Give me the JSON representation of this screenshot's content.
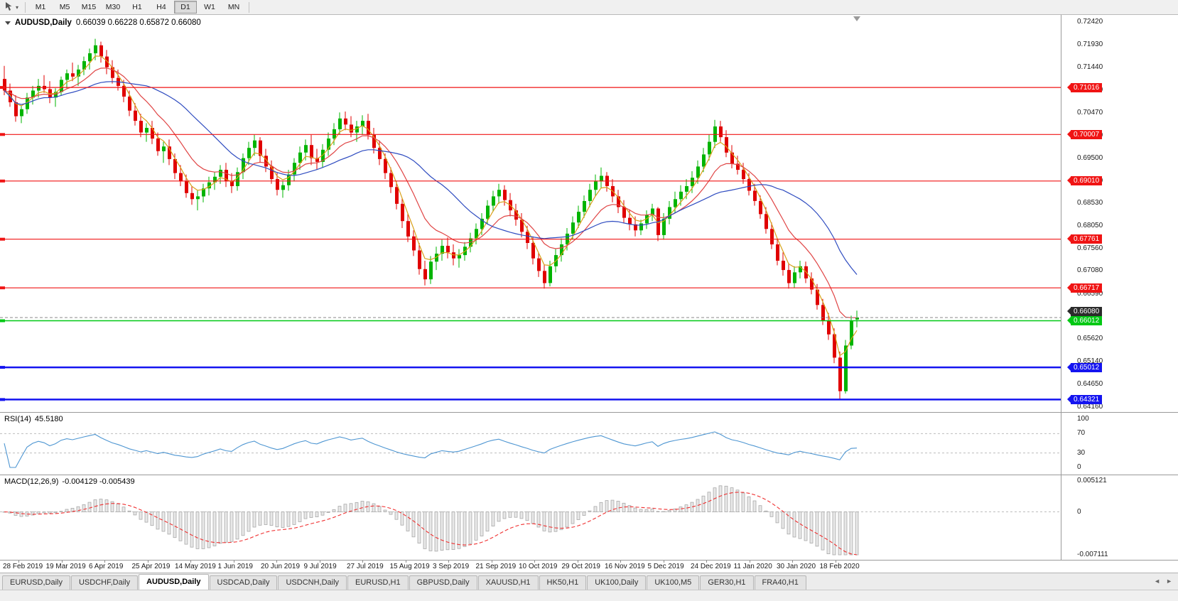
{
  "toolbar": {
    "caret_glyph": "▾",
    "timeframes": [
      {
        "label": "M1",
        "active": false
      },
      {
        "label": "M5",
        "active": false
      },
      {
        "label": "M15",
        "active": false
      },
      {
        "label": "M30",
        "active": false
      },
      {
        "label": "H1",
        "active": false
      },
      {
        "label": "H4",
        "active": false
      },
      {
        "label": "D1",
        "active": true
      },
      {
        "label": "W1",
        "active": false
      },
      {
        "label": "MN",
        "active": false
      }
    ]
  },
  "chart_data": {
    "type": "candlestick",
    "symbol_label": "AUDUSD,Daily",
    "ohlc_readout": "0.66039 0.66228 0.65872 0.66080",
    "price_max": 0.7242,
    "price_min": 0.6416,
    "candle_up_color": "#00b400",
    "candle_down_color": "#e00000",
    "price_ticks": [
      "0.72420",
      "0.71930",
      "0.71440",
      "0.70960",
      "0.70470",
      "0.69990",
      "0.69500",
      "0.69010",
      "0.68530",
      "0.68050",
      "0.67560",
      "0.67080",
      "0.66590",
      "0.66110",
      "0.65620",
      "0.65140",
      "0.64650",
      "0.64160"
    ],
    "dates": [
      "28 Feb 2019",
      "19 Mar 2019",
      "6 Apr 2019",
      "25 Apr 2019",
      "14 May 2019",
      "1 Jun 2019",
      "20 Jun 2019",
      "9 Jul 2019",
      "27 Jul 2019",
      "15 Aug 2019",
      "3 Sep 2019",
      "21 Sep 2019",
      "10 Oct 2019",
      "29 Oct 2019",
      "16 Nov 2019",
      "5 Dec 2019",
      "24 Dec 2019",
      "11 Jan 2020",
      "30 Jan 2020",
      "18 Feb 2020"
    ],
    "moving_averages": [
      {
        "name": "fast",
        "method": "ema",
        "period": 4,
        "color": "#d8a018"
      },
      {
        "name": "medium",
        "method": "ema",
        "period": 11,
        "color": "#e04545"
      },
      {
        "name": "slow",
        "method": "sma",
        "period": 22,
        "color": "#2f4cc0"
      }
    ],
    "horizontal_lines": [
      {
        "value": 0.71016,
        "label": "0.71016",
        "color": "#f01414",
        "width": 1.2
      },
      {
        "value": 0.70007,
        "label": "0.70007",
        "color": "#f01414",
        "width": 1.2
      },
      {
        "value": 0.6901,
        "label": "0.69010",
        "color": "#f01414",
        "width": 1.2
      },
      {
        "value": 0.67761,
        "label": "0.67761",
        "color": "#f01414",
        "width": 1.2
      },
      {
        "value": 0.66717,
        "label": "0.66717",
        "color": "#f01414",
        "width": 1.2
      },
      {
        "value": 0.66012,
        "label": "0.66012",
        "color": "#00c814",
        "width": 1.5
      },
      {
        "value": 0.65012,
        "label": "0.65012",
        "color": "#1414f0",
        "width": 2.5
      },
      {
        "value": 0.64321,
        "label": "0.64321",
        "color": "#1414f0",
        "width": 2.5
      }
    ],
    "bid_line": {
      "value": 0.6608,
      "label": "0.66080",
      "color": "#2b2b2b"
    },
    "candles": [
      [
        0.712,
        0.7148,
        0.7085,
        0.7095
      ],
      [
        0.7095,
        0.711,
        0.706,
        0.707
      ],
      [
        0.707,
        0.7085,
        0.7028,
        0.704
      ],
      [
        0.704,
        0.7062,
        0.7025,
        0.7055
      ],
      [
        0.7055,
        0.709,
        0.7045,
        0.708
      ],
      [
        0.708,
        0.7105,
        0.7065,
        0.7095
      ],
      [
        0.7095,
        0.712,
        0.708,
        0.7105
      ],
      [
        0.7105,
        0.7128,
        0.709,
        0.7098
      ],
      [
        0.7098,
        0.7115,
        0.7068,
        0.708
      ],
      [
        0.708,
        0.71,
        0.706,
        0.7092
      ],
      [
        0.7092,
        0.7125,
        0.7085,
        0.7118
      ],
      [
        0.7118,
        0.714,
        0.71,
        0.7132
      ],
      [
        0.7132,
        0.7155,
        0.7115,
        0.7125
      ],
      [
        0.7125,
        0.715,
        0.7105,
        0.714
      ],
      [
        0.714,
        0.7168,
        0.7128,
        0.7158
      ],
      [
        0.7158,
        0.7185,
        0.714,
        0.7175
      ],
      [
        0.7175,
        0.7206,
        0.716,
        0.7192
      ],
      [
        0.7192,
        0.72,
        0.7155,
        0.7168
      ],
      [
        0.7168,
        0.7182,
        0.713,
        0.7145
      ],
      [
        0.7145,
        0.716,
        0.711,
        0.7122
      ],
      [
        0.7122,
        0.714,
        0.7095,
        0.7105
      ],
      [
        0.7105,
        0.7118,
        0.707,
        0.7082
      ],
      [
        0.7082,
        0.7095,
        0.704,
        0.7052
      ],
      [
        0.7052,
        0.7068,
        0.702,
        0.703
      ],
      [
        0.703,
        0.7045,
        0.6995,
        0.7005
      ],
      [
        0.7005,
        0.7025,
        0.6985,
        0.7015
      ],
      [
        0.7015,
        0.703,
        0.698,
        0.6992
      ],
      [
        0.6992,
        0.7005,
        0.6955,
        0.6965
      ],
      [
        0.6965,
        0.6985,
        0.694,
        0.6975
      ],
      [
        0.6975,
        0.699,
        0.6935,
        0.6948
      ],
      [
        0.6948,
        0.696,
        0.6905,
        0.6918
      ],
      [
        0.6918,
        0.6935,
        0.689,
        0.69
      ],
      [
        0.69,
        0.6915,
        0.6865,
        0.6875
      ],
      [
        0.6875,
        0.689,
        0.685,
        0.6862
      ],
      [
        0.6862,
        0.688,
        0.6838,
        0.6868
      ],
      [
        0.6868,
        0.6895,
        0.6855,
        0.6885
      ],
      [
        0.6885,
        0.691,
        0.687,
        0.6898
      ],
      [
        0.6898,
        0.692,
        0.6882,
        0.691
      ],
      [
        0.691,
        0.6935,
        0.6895,
        0.6925
      ],
      [
        0.6925,
        0.694,
        0.6888,
        0.69
      ],
      [
        0.69,
        0.6918,
        0.6875,
        0.689
      ],
      [
        0.689,
        0.693,
        0.688,
        0.692
      ],
      [
        0.692,
        0.696,
        0.6905,
        0.695
      ],
      [
        0.695,
        0.6985,
        0.6935,
        0.6972
      ],
      [
        0.6972,
        0.7,
        0.6955,
        0.6988
      ],
      [
        0.6988,
        0.6995,
        0.694,
        0.6955
      ],
      [
        0.6955,
        0.697,
        0.692,
        0.6932
      ],
      [
        0.6932,
        0.6945,
        0.6895,
        0.6905
      ],
      [
        0.6905,
        0.692,
        0.687,
        0.6882
      ],
      [
        0.6882,
        0.69,
        0.6865,
        0.6892
      ],
      [
        0.6892,
        0.6925,
        0.688,
        0.6915
      ],
      [
        0.6915,
        0.695,
        0.69,
        0.694
      ],
      [
        0.694,
        0.6975,
        0.6925,
        0.6962
      ],
      [
        0.6962,
        0.699,
        0.6945,
        0.6978
      ],
      [
        0.6978,
        0.7,
        0.6935,
        0.695
      ],
      [
        0.695,
        0.697,
        0.6925,
        0.6942
      ],
      [
        0.6942,
        0.698,
        0.693,
        0.6968
      ],
      [
        0.6968,
        0.7005,
        0.6955,
        0.6992
      ],
      [
        0.6992,
        0.7025,
        0.6978,
        0.7012
      ],
      [
        0.7012,
        0.7048,
        0.7,
        0.7035
      ],
      [
        0.7035,
        0.705,
        0.701,
        0.7022
      ],
      [
        0.7022,
        0.704,
        0.6995,
        0.7005
      ],
      [
        0.7005,
        0.703,
        0.6985,
        0.7018
      ],
      [
        0.7018,
        0.7042,
        0.7,
        0.703
      ],
      [
        0.703,
        0.7045,
        0.699,
        0.7
      ],
      [
        0.7,
        0.7015,
        0.696,
        0.6972
      ],
      [
        0.6972,
        0.6988,
        0.6935,
        0.6948
      ],
      [
        0.6948,
        0.696,
        0.6905,
        0.6918
      ],
      [
        0.6918,
        0.693,
        0.6875,
        0.6888
      ],
      [
        0.6888,
        0.69,
        0.684,
        0.6852
      ],
      [
        0.6852,
        0.6865,
        0.68,
        0.6815
      ],
      [
        0.6815,
        0.683,
        0.677,
        0.6782
      ],
      [
        0.6782,
        0.6795,
        0.674,
        0.6752
      ],
      [
        0.6752,
        0.6768,
        0.67,
        0.6712
      ],
      [
        0.6712,
        0.673,
        0.6677,
        0.669
      ],
      [
        0.669,
        0.674,
        0.668,
        0.6728
      ],
      [
        0.6728,
        0.676,
        0.671,
        0.6745
      ],
      [
        0.6745,
        0.6775,
        0.673,
        0.6762
      ],
      [
        0.6762,
        0.678,
        0.6735,
        0.6748
      ],
      [
        0.6748,
        0.6765,
        0.672,
        0.6735
      ],
      [
        0.6735,
        0.6755,
        0.6715,
        0.6742
      ],
      [
        0.6742,
        0.677,
        0.673,
        0.676
      ],
      [
        0.676,
        0.679,
        0.6748,
        0.6778
      ],
      [
        0.6778,
        0.681,
        0.6765,
        0.6798
      ],
      [
        0.6798,
        0.6832,
        0.6785,
        0.682
      ],
      [
        0.682,
        0.686,
        0.6808,
        0.6848
      ],
      [
        0.6848,
        0.688,
        0.6835,
        0.6868
      ],
      [
        0.6868,
        0.6895,
        0.6852,
        0.6882
      ],
      [
        0.6882,
        0.6892,
        0.6848,
        0.686
      ],
      [
        0.686,
        0.6875,
        0.6825,
        0.6838
      ],
      [
        0.6838,
        0.6852,
        0.6805,
        0.6818
      ],
      [
        0.6818,
        0.6832,
        0.678,
        0.6792
      ],
      [
        0.6792,
        0.6805,
        0.6755,
        0.6768
      ],
      [
        0.6768,
        0.6782,
        0.6722,
        0.6735
      ],
      [
        0.6735,
        0.6748,
        0.6695,
        0.6708
      ],
      [
        0.6708,
        0.6722,
        0.667,
        0.6682
      ],
      [
        0.6682,
        0.673,
        0.6675,
        0.6718
      ],
      [
        0.6718,
        0.6755,
        0.6705,
        0.6742
      ],
      [
        0.6742,
        0.6778,
        0.6728,
        0.6765
      ],
      [
        0.6765,
        0.68,
        0.6752,
        0.6788
      ],
      [
        0.6788,
        0.6825,
        0.6775,
        0.6812
      ],
      [
        0.6812,
        0.6848,
        0.68,
        0.6835
      ],
      [
        0.6835,
        0.687,
        0.6822,
        0.6858
      ],
      [
        0.6858,
        0.6895,
        0.6845,
        0.6882
      ],
      [
        0.6882,
        0.6915,
        0.6868,
        0.69
      ],
      [
        0.69,
        0.693,
        0.6885,
        0.6912
      ],
      [
        0.6912,
        0.692,
        0.6878,
        0.689
      ],
      [
        0.689,
        0.6905,
        0.6855,
        0.6868
      ],
      [
        0.6868,
        0.6882,
        0.6832,
        0.6845
      ],
      [
        0.6845,
        0.686,
        0.681,
        0.6822
      ],
      [
        0.6822,
        0.684,
        0.6795,
        0.6808
      ],
      [
        0.6808,
        0.6825,
        0.6782,
        0.6795
      ],
      [
        0.6795,
        0.6818,
        0.6785,
        0.681
      ],
      [
        0.681,
        0.6838,
        0.6798,
        0.6828
      ],
      [
        0.6828,
        0.6852,
        0.6815,
        0.6842
      ],
      [
        0.6842,
        0.6845,
        0.6772,
        0.6785
      ],
      [
        0.6785,
        0.6832,
        0.6775,
        0.682
      ],
      [
        0.682,
        0.6858,
        0.6808,
        0.6845
      ],
      [
        0.6845,
        0.6878,
        0.6832,
        0.6862
      ],
      [
        0.6862,
        0.6892,
        0.6848,
        0.6878
      ],
      [
        0.6878,
        0.6905,
        0.6862,
        0.689
      ],
      [
        0.689,
        0.6922,
        0.6875,
        0.6908
      ],
      [
        0.6908,
        0.6945,
        0.6895,
        0.6932
      ],
      [
        0.6932,
        0.6972,
        0.692,
        0.6958
      ],
      [
        0.6958,
        0.7,
        0.6945,
        0.6985
      ],
      [
        0.6985,
        0.7032,
        0.6972,
        0.7018
      ],
      [
        0.7018,
        0.703,
        0.6985,
        0.6995
      ],
      [
        0.6995,
        0.701,
        0.6952,
        0.6962
      ],
      [
        0.6962,
        0.6978,
        0.6928,
        0.6938
      ],
      [
        0.6938,
        0.6955,
        0.6915,
        0.6925
      ],
      [
        0.6925,
        0.694,
        0.6895,
        0.6905
      ],
      [
        0.6905,
        0.6918,
        0.687,
        0.688
      ],
      [
        0.688,
        0.6895,
        0.6848,
        0.6858
      ],
      [
        0.6858,
        0.687,
        0.682,
        0.683
      ],
      [
        0.683,
        0.6845,
        0.6788,
        0.6798
      ],
      [
        0.6798,
        0.6812,
        0.6755,
        0.6765
      ],
      [
        0.6765,
        0.6778,
        0.672,
        0.673
      ],
      [
        0.673,
        0.6748,
        0.6698,
        0.671
      ],
      [
        0.671,
        0.6725,
        0.667,
        0.6682
      ],
      [
        0.6682,
        0.6718,
        0.6672,
        0.6705
      ],
      [
        0.6705,
        0.673,
        0.6692,
        0.6718
      ],
      [
        0.6718,
        0.6728,
        0.6682,
        0.6692
      ],
      [
        0.6692,
        0.6705,
        0.6658,
        0.6668
      ],
      [
        0.6668,
        0.668,
        0.6625,
        0.6635
      ],
      [
        0.6635,
        0.6648,
        0.6592,
        0.6602
      ],
      [
        0.6602,
        0.6618,
        0.656,
        0.6572
      ],
      [
        0.6572,
        0.6585,
        0.651,
        0.6522
      ],
      [
        0.6522,
        0.6535,
        0.6433,
        0.645
      ],
      [
        0.645,
        0.656,
        0.6445,
        0.6548
      ],
      [
        0.6548,
        0.6612,
        0.654,
        0.6602
      ],
      [
        0.66039,
        0.66228,
        0.65872,
        0.6608
      ]
    ]
  },
  "rsi": {
    "name_label": "RSI(14)",
    "value_label": "45.5180",
    "line_color": "#4e96d2",
    "levels": [
      {
        "label": "100",
        "value": 100
      },
      {
        "label": "70",
        "value": 70
      },
      {
        "label": "30",
        "value": 30
      },
      {
        "label": "0",
        "value": 0
      }
    ]
  },
  "macd": {
    "name_label": "MACD(12,26,9)",
    "values_label": "-0.004129 -0.005439",
    "fast": 12,
    "slow": 26,
    "signal": 9,
    "histogram_fill": "#e8e8e8",
    "histogram_border": "#a8a8a8",
    "signal_color": "#f03030",
    "axis_levels": [
      {
        "label": "0.005121",
        "value": 0.005121
      },
      {
        "label": "0",
        "value": 0
      },
      {
        "label": "-0.007111",
        "value": -0.007111
      }
    ]
  },
  "tabs": {
    "scroll_left_glyph": "◄",
    "scroll_right_glyph": "►",
    "items": [
      {
        "label": "EURUSD,Daily",
        "active": false
      },
      {
        "label": "USDCHF,Daily",
        "active": false
      },
      {
        "label": "AUDUSD,Daily",
        "active": true
      },
      {
        "label": "USDCAD,Daily",
        "active": false
      },
      {
        "label": "USDCNH,Daily",
        "active": false
      },
      {
        "label": "EURUSD,H1",
        "active": false
      },
      {
        "label": "GBPUSD,Daily",
        "active": false
      },
      {
        "label": "XAUUSD,H1",
        "active": false
      },
      {
        "label": "HK50,H1",
        "active": false
      },
      {
        "label": "UK100,Daily",
        "active": false
      },
      {
        "label": "UK100,M5",
        "active": false
      },
      {
        "label": "GER30,H1",
        "active": false
      },
      {
        "label": "FRA40,H1",
        "active": false
      }
    ]
  }
}
